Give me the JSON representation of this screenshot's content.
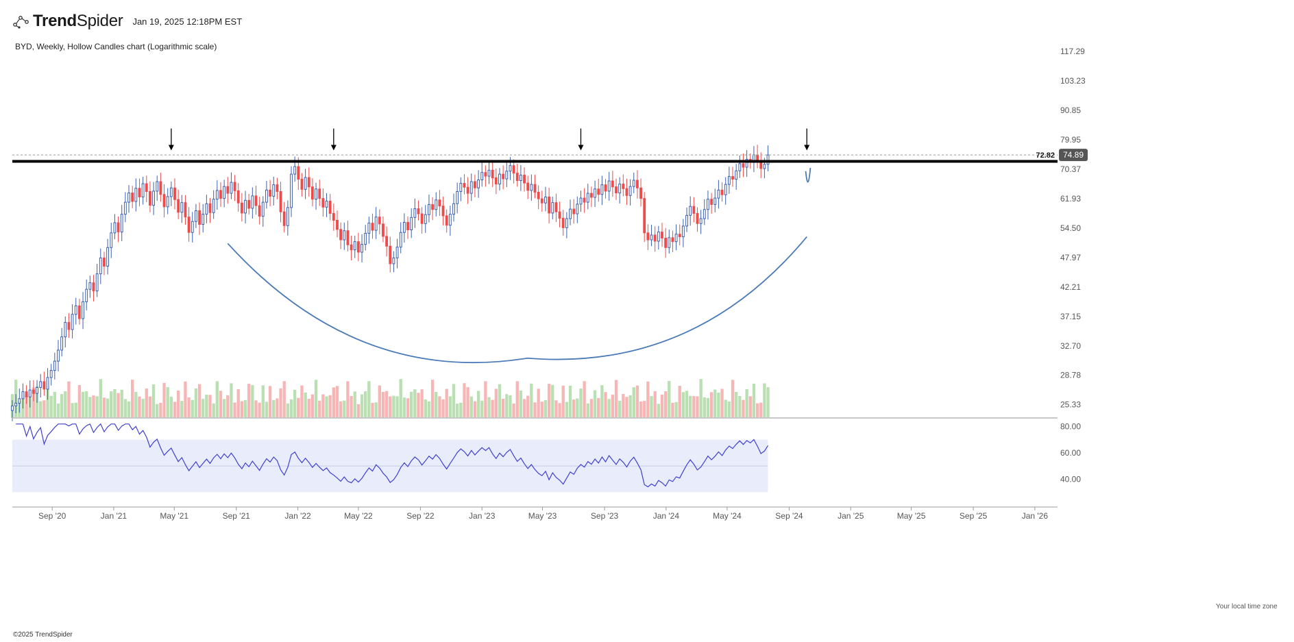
{
  "header": {
    "brand_bold": "Trend",
    "brand_light": "Spider",
    "timestamp": "Jan 19, 2025 12:18PM EST"
  },
  "title": "BYD, Weekly, Hollow Candles chart (Logarithmic scale)",
  "footer": "©2025 TrendSpider",
  "timezone_label": "Your local time zone",
  "colors": {
    "up": "#3a5fb3",
    "down": "#ef4b4b",
    "vol_up": "#b9dfb2",
    "vol_down": "#f7b6b6",
    "rsi_line": "#3f3fcf",
    "rsi_band": "#e8ecfb",
    "curve": "#4a7ab8",
    "resistance": "#000000"
  },
  "chart_data": {
    "type": "candlestick",
    "symbol": "BYD",
    "interval": "Weekly",
    "scale": "log",
    "price_axis_labels": [
      "117.29",
      "103.23",
      "90.85",
      "79.95",
      "70.37",
      "61.93",
      "54.50",
      "47.97",
      "42.21",
      "37.15",
      "32.70",
      "28.78",
      "25.33"
    ],
    "ylim": [
      24.2,
      122
    ],
    "x_axis_labels": [
      "Sep '20",
      "Jan '21",
      "May '21",
      "Sep '21",
      "Jan '22",
      "May '22",
      "Sep '22",
      "Jan '23",
      "May '23",
      "Sep '23",
      "Jan '24",
      "May '24",
      "Sep '24",
      "Jan '25",
      "May '25",
      "Sep '25",
      "Jan '26"
    ],
    "x_start": "2020-06-14",
    "x_end": "2026-02-15",
    "weekly_closes": [
      {
        "start": "2020-06-14",
        "values": [
          25.2,
          25.5,
          26.0,
          26.8,
          26.2,
          27.0,
          26.6,
          27.3,
          28.0,
          27.1,
          28.5,
          29.4,
          30.6,
          32.1,
          34.0,
          36.2,
          35.1,
          37.5,
          38.9,
          36.8,
          39.6,
          41.8,
          43.0,
          41.5,
          44.7,
          47.9,
          46.2,
          50.1,
          53.4,
          55.8,
          53.6,
          57.9,
          61.0,
          63.5,
          61.2,
          64.8,
          62.4,
          66.1,
          63.9,
          60.2,
          64.0,
          66.7,
          63.1,
          59.8,
          62.5,
          64.9,
          61.7,
          58.4,
          60.9,
          57.2,
          53.5,
          56.1,
          58.8,
          55.4,
          57.9,
          60.6,
          58.3,
          61.8,
          64.2,
          62.0,
          65.3,
          63.4,
          66.5,
          64.1,
          60.8,
          58.2,
          61.5,
          59.4,
          62.7,
          60.1,
          57.4,
          61.0,
          64.3,
          62.6,
          65.8,
          63.9,
          58.5,
          55.1,
          59.6,
          68.9,
          71.2,
          67.4,
          64.5,
          67.9,
          65.2,
          61.8,
          64.6,
          62.0,
          59.7,
          61.3,
          58.1,
          56.4,
          54.2,
          51.8,
          53.9,
          50.7,
          49.6,
          51.4,
          49.1,
          50.8,
          53.3,
          55.7,
          54.0,
          57.2,
          55.5,
          52.6,
          50.4,
          46.7,
          47.9,
          50.2,
          53.5,
          55.9,
          54.1,
          57.1,
          59.3,
          58.0,
          55.6,
          57.8,
          60.4,
          59.1,
          61.6,
          60.0,
          57.5,
          55.2,
          57.9,
          60.6,
          63.9,
          66.2,
          65.1,
          63.4,
          66.7,
          64.9,
          67.2,
          69.4,
          68.3,
          70.1,
          67.8,
          66.0,
          68.9,
          67.5,
          69.8,
          71.5,
          69.2,
          67.0,
          68.6,
          66.3,
          64.2,
          65.9,
          63.7,
          61.9,
          60.8,
          62.4,
          58.2,
          60.9,
          58.5,
          56.9,
          54.6,
          56.8,
          59.2,
          58.0,
          60.5,
          62.1,
          61.0,
          63.4,
          62.3,
          64.6,
          63.1,
          65.8,
          64.0,
          66.9,
          65.2,
          63.5,
          66.0,
          64.7,
          62.8,
          65.3,
          67.1,
          64.9,
          62.0,
          53.4,
          51.8,
          52.9,
          51.5,
          53.6,
          52.2,
          50.1,
          52.3,
          51.4,
          53.1,
          52.5,
          55.0,
          57.6,
          59.9,
          58.1,
          55.6,
          56.8,
          59.1,
          61.8,
          60.4,
          62.1,
          64.3,
          63.0,
          65.9,
          68.2,
          67.4,
          69.9,
          72.1,
          71.0,
          73.5,
          72.8,
          74.9,
          73.0,
          70.6,
          71.9,
          74.89
        ]
      }
    ],
    "resistance_level": 72.82,
    "last_price": 74.89,
    "annotations": [
      "resistance line at 72.82",
      "4 down arrows at tops",
      "cup curve",
      "handle curve"
    ],
    "rsi": {
      "axis_labels": [
        "80.00",
        "60.00",
        "40.00"
      ],
      "ylim": [
        25,
        85
      ],
      "band": [
        30,
        70
      ],
      "midline": 50
    }
  }
}
